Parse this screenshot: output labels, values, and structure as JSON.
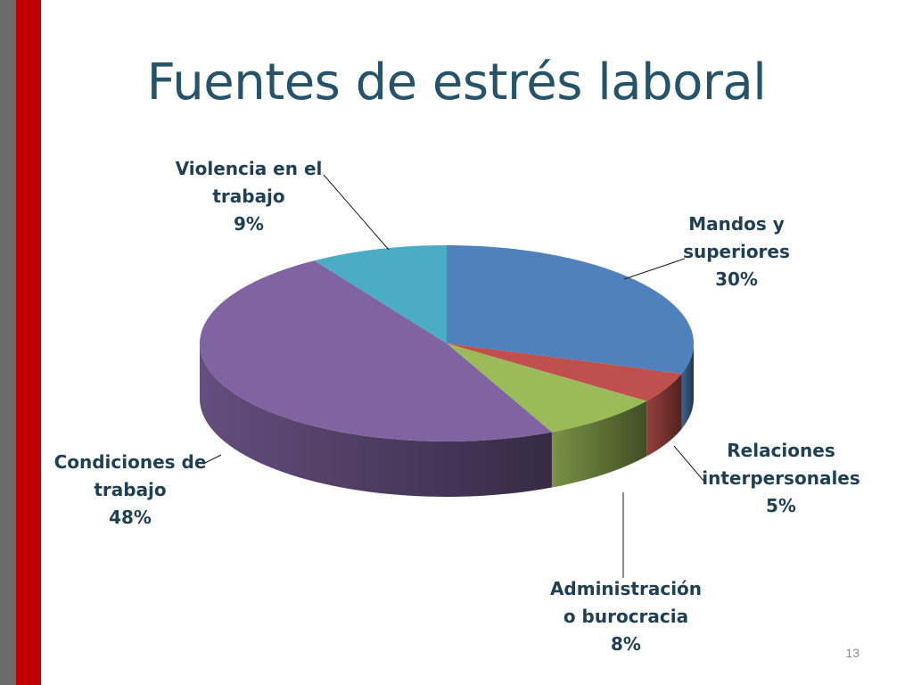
{
  "slide": {
    "title": "Fuentes de estrés laboral",
    "page_number": "13"
  },
  "colors": {
    "left_bar": "#6b6b6b",
    "accent_bar": "#c00000",
    "title": "#25546a"
  },
  "chart_data": {
    "type": "pie",
    "title": "",
    "series": [
      {
        "values": [
          30,
          5,
          8,
          48,
          9
        ],
        "categories": [
          "Mandos y superiores",
          "Relaciones interpersonales",
          "Administración o burocracia",
          "Condiciones de trabajo",
          "Violencia en el trabajo"
        ],
        "colors": [
          "#4f81bd",
          "#c0504d",
          "#9bbb59",
          "#8064a2",
          "#4bacc6"
        ]
      }
    ],
    "data_labels": [
      {
        "lines": [
          "Mandos y",
          "superiores"
        ],
        "percent": "30%"
      },
      {
        "lines": [
          "Relaciones",
          "interpersonales"
        ],
        "percent": "5%"
      },
      {
        "lines": [
          "Administración",
          "o burocracia"
        ],
        "percent": "8%"
      },
      {
        "lines": [
          "Condiciones de",
          "trabajo"
        ],
        "percent": "48%"
      },
      {
        "lines": [
          "Violencia en el",
          "trabajo"
        ],
        "percent": "9%"
      }
    ],
    "style": "3d",
    "legend": "none"
  }
}
